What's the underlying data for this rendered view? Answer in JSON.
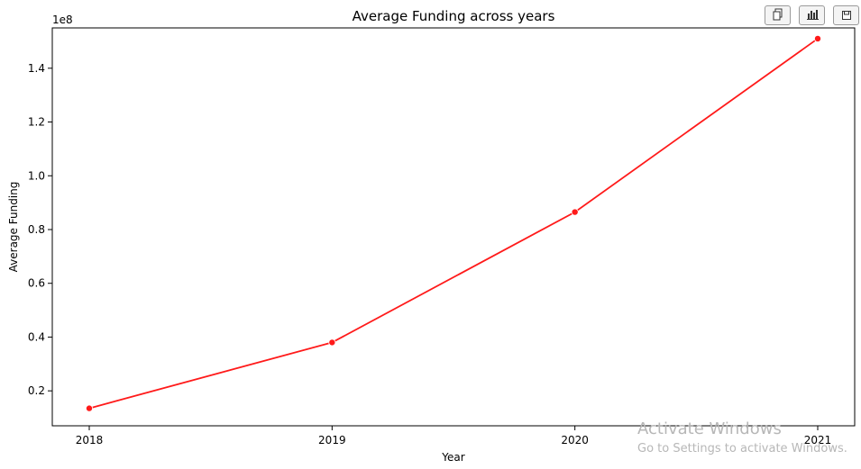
{
  "chart_data": {
    "type": "line",
    "title": "Average Funding across years",
    "xlabel": "Year",
    "ylabel": "Average Funding",
    "y_offset_label": "1e8",
    "categories": [
      "2018",
      "2019",
      "2020",
      "2021"
    ],
    "series": [
      {
        "values": [
          0.135,
          0.38,
          0.865,
          1.51
        ],
        "color": "#ff1a1a"
      }
    ],
    "ylim": [
      0.07,
      1.55
    ],
    "yticks": [
      0.2,
      0.4,
      0.6,
      0.8,
      1.0,
      1.2,
      1.4
    ],
    "ytick_labels": [
      "0.2",
      "0.4",
      "0.6",
      "0.8",
      "1.0",
      "1.2",
      "1.4"
    ],
    "grid": false,
    "marker": "circle"
  },
  "toolbar": {
    "buttons": [
      {
        "icon": "copy-icon"
      },
      {
        "icon": "bar-chart-icon"
      },
      {
        "icon": "save-icon"
      }
    ]
  },
  "watermark": {
    "title": "Activate Windows",
    "subtitle": "Go to Settings to activate Windows."
  }
}
